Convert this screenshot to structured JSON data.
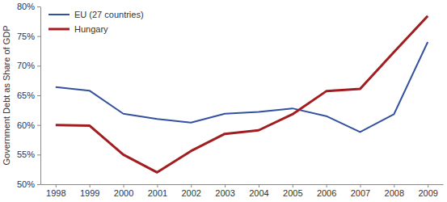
{
  "chart_data": {
    "type": "line",
    "y_label": "Government Debt as Share of GDP",
    "categories": [
      "1998",
      "1999",
      "2000",
      "2001",
      "2002",
      "2003",
      "2004",
      "2005",
      "2006",
      "2007",
      "2008",
      "2009"
    ],
    "series": [
      {
        "name": "EU (27 countries)",
        "color": "#33519e",
        "values": [
          66.4,
          65.8,
          61.9,
          61.0,
          60.4,
          61.9,
          62.2,
          62.8,
          61.5,
          58.8,
          61.8,
          74.0
        ]
      },
      {
        "name": "Hungary",
        "color": "#a11d1f",
        "values": [
          60.0,
          59.9,
          55.0,
          52.0,
          55.6,
          58.5,
          59.1,
          61.8,
          65.7,
          66.1,
          72.3,
          78.4
        ]
      }
    ],
    "ylim": [
      50,
      80
    ],
    "yticks": [
      {
        "value": 50,
        "label": "50%"
      },
      {
        "value": 55,
        "label": "55%"
      },
      {
        "value": 60,
        "label": "60%"
      },
      {
        "value": 65,
        "label": "65%"
      },
      {
        "value": 70,
        "label": "70%"
      },
      {
        "value": 75,
        "label": "75%"
      },
      {
        "value": 80,
        "label": "80%"
      }
    ],
    "grid": false,
    "legend": "top-left"
  }
}
